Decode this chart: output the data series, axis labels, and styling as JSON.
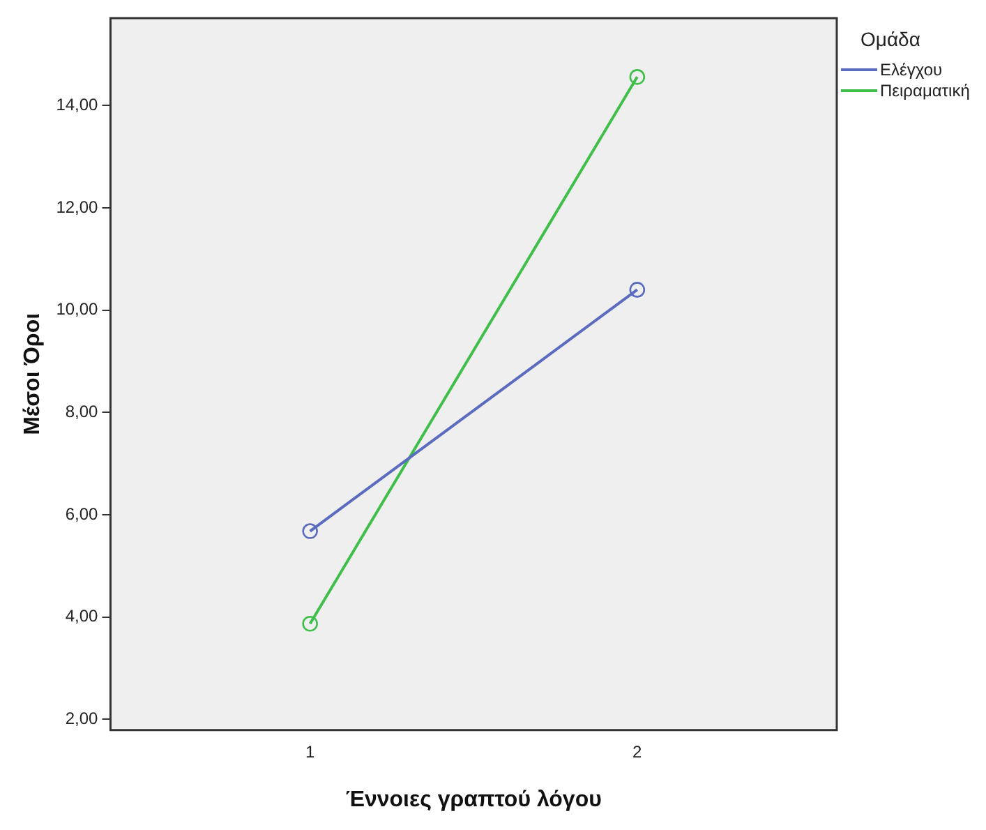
{
  "chart_data": {
    "type": "line",
    "xlabel": "Έννοιες γραπτού λόγου",
    "ylabel": "Μέσοι Όροι",
    "legend_title": "Ομάδα",
    "legend": "right",
    "marker": "circle",
    "line_style": "solid",
    "grid": false,
    "x": [
      1,
      2
    ],
    "xlim": [
      0.39,
      2.61
    ],
    "xticks": [
      1,
      2
    ],
    "ylim": [
      1.79,
      15.71
    ],
    "yticks": [
      {
        "value": 2,
        "label": "2,00"
      },
      {
        "value": 4,
        "label": "4,00"
      },
      {
        "value": 6,
        "label": "6,00"
      },
      {
        "value": 8,
        "label": "8,00"
      },
      {
        "value": 10,
        "label": "10,00"
      },
      {
        "value": 12,
        "label": "12,00"
      },
      {
        "value": 14,
        "label": "14,00"
      }
    ],
    "series": [
      {
        "name": "Ελέγχου",
        "color": "#5b6bbf",
        "values": [
          5.68,
          10.4
        ]
      },
      {
        "name": "Πειραματική",
        "color": "#3fbf4a",
        "values": [
          3.87,
          14.56
        ]
      }
    ]
  }
}
